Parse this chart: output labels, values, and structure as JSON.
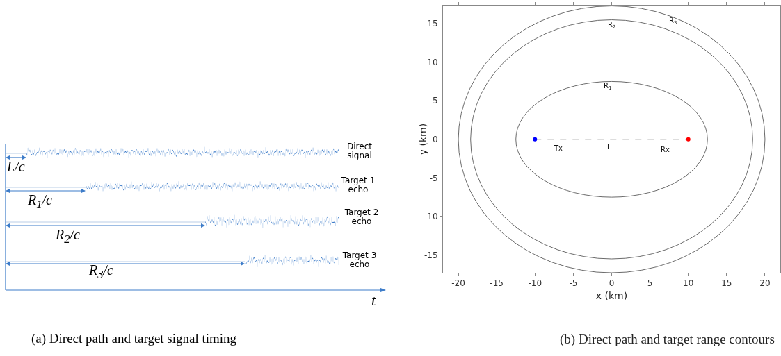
{
  "chart_data": [
    {
      "type": "other",
      "annotations": [
        "L/c",
        "Direct signal",
        "R$_{1}$/c",
        "Target 1 echo",
        "R$_{2}$/c",
        "Target 2 echo",
        "R$_{3}$/c",
        "Target 3 echo",
        "t",
        "(a) Direct path and target signal timing"
      ]
    },
    {
      "type": "line",
      "xlabel": "x (km)",
      "ylabel": "y (km)",
      "xlim": [
        -22,
        22
      ],
      "ylim": [
        -17.3,
        17.35
      ],
      "xticks": [
        -20,
        -15,
        -10,
        -5,
        0,
        5,
        10,
        15,
        20
      ],
      "yticks": [
        -15,
        -10,
        -5,
        0,
        5,
        10,
        15
      ],
      "grid": false,
      "series": [
        {
          "type": "line",
          "line_style": "dashed",
          "marker": "circle",
          "color": "#bbbbbb",
          "colors": [
            "#0000ff",
            "#ff0000"
          ],
          "x": [
            -10,
            10
          ],
          "values": [
            0,
            0
          ]
        }
      ],
      "annotations": [
        "R$_{1}$",
        "R$_{2}$",
        "R$_{3}$",
        "Tx",
        "L",
        "Rx",
        "(b) Direct path and target range contours"
      ]
    }
  ]
}
